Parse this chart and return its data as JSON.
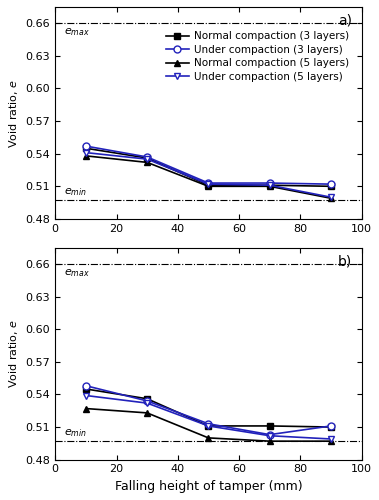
{
  "x": [
    10,
    30,
    50,
    70,
    90
  ],
  "subplot_a": {
    "label": "a)",
    "e_max": 0.66,
    "e_min": 0.497,
    "series": [
      {
        "label": "Normal compaction (3 layers)",
        "color": "black",
        "marker": "s",
        "filled": true,
        "y": [
          0.545,
          0.536,
          0.511,
          0.511,
          0.51
        ]
      },
      {
        "label": "Under compaction (3 layers)",
        "color": "#2222bb",
        "marker": "o",
        "filled": false,
        "y": [
          0.547,
          0.537,
          0.513,
          0.513,
          0.512
        ]
      },
      {
        "label": "Normal compaction (5 layers)",
        "color": "black",
        "marker": "^",
        "filled": true,
        "y": [
          0.538,
          0.532,
          0.51,
          0.51,
          0.499
        ]
      },
      {
        "label": "Under compaction (5 layers)",
        "color": "#2222bb",
        "marker": "v",
        "filled": false,
        "y": [
          0.541,
          0.535,
          0.512,
          0.511,
          0.5
        ]
      }
    ]
  },
  "subplot_b": {
    "label": "b)",
    "e_max": 0.66,
    "e_min": 0.497,
    "series": [
      {
        "label": "Normal compaction (3 layers)",
        "color": "black",
        "marker": "s",
        "filled": true,
        "y": [
          0.545,
          0.536,
          0.511,
          0.511,
          0.51
        ]
      },
      {
        "label": "Under compaction (3 layers)",
        "color": "#2222bb",
        "marker": "o",
        "filled": false,
        "y": [
          0.548,
          0.534,
          0.513,
          0.503,
          0.511
        ]
      },
      {
        "label": "Normal compaction (5 layers)",
        "color": "black",
        "marker": "^",
        "filled": true,
        "y": [
          0.527,
          0.523,
          0.5,
          0.497,
          0.497
        ]
      },
      {
        "label": "Under compaction (5 layers)",
        "color": "#2222bb",
        "marker": "v",
        "filled": false,
        "y": [
          0.539,
          0.532,
          0.511,
          0.502,
          0.499
        ]
      }
    ]
  },
  "ylabel": "Void ratio, $e$",
  "xlabel": "Falling height of tamper (mm)",
  "ylim": [
    0.48,
    0.675
  ],
  "xlim": [
    0,
    100
  ],
  "yticks": [
    0.48,
    0.51,
    0.54,
    0.57,
    0.6,
    0.63,
    0.66
  ],
  "xticks": [
    0,
    20,
    40,
    60,
    80,
    100
  ]
}
